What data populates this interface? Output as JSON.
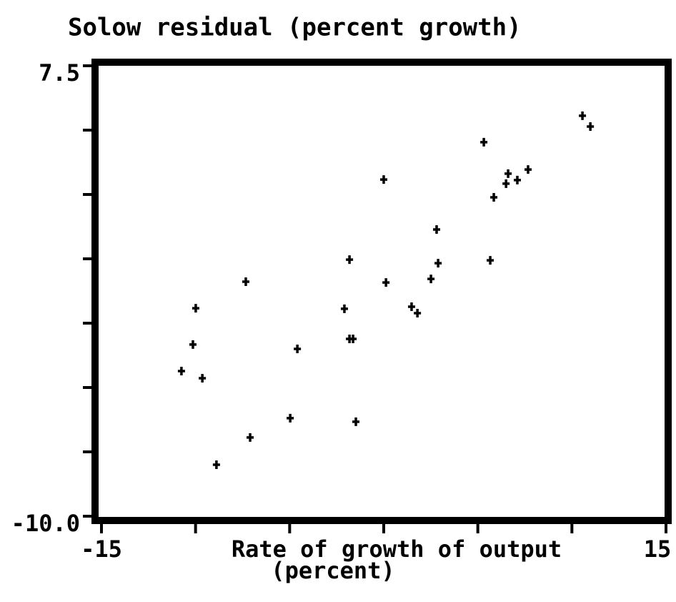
{
  "chart_data": {
    "type": "scatter",
    "title": "Solow residual (percent growth)",
    "x_label": [
      "Rate of growth of output",
      "(percent)"
    ],
    "color": "#000000",
    "xlim": [
      -15,
      15
    ],
    "ylim": [
      -10,
      7.5
    ],
    "xticks": [
      -15,
      -10,
      -5,
      0,
      5,
      10,
      15
    ],
    "yticks": [
      -10,
      -7.5,
      -5,
      -2.5,
      0,
      2.5,
      5,
      7.5
    ],
    "labeled_xticks": [
      -15,
      15
    ],
    "labeled_yticks": [
      7.5,
      {
        "value": -10,
        "label": "-10.0"
      }
    ],
    "x": [
      -10.75,
      -10.14,
      -9.99,
      -9.64,
      -8.89,
      -7.33,
      -7.1,
      -4.97,
      -4.59,
      -2.09,
      -1.82,
      -1.82,
      -1.63,
      -1.48,
      0.0,
      0.12,
      1.48,
      1.79,
      2.51,
      2.81,
      2.89,
      5.32,
      5.66,
      5.85,
      6.5,
      6.61,
      7.1,
      7.67,
      10.56,
      10.98
    ],
    "values": [
      -4.36,
      -3.33,
      -1.92,
      -4.64,
      -8.0,
      -0.89,
      -6.94,
      -6.19,
      -3.5,
      -1.94,
      -0.03,
      -3.11,
      -3.11,
      -6.33,
      3.08,
      -0.92,
      -1.86,
      -2.11,
      -0.78,
      1.14,
      -0.17,
      4.53,
      -0.06,
      2.39,
      2.92,
      3.31,
      3.06,
      3.47,
      5.56,
      5.14
    ]
  }
}
